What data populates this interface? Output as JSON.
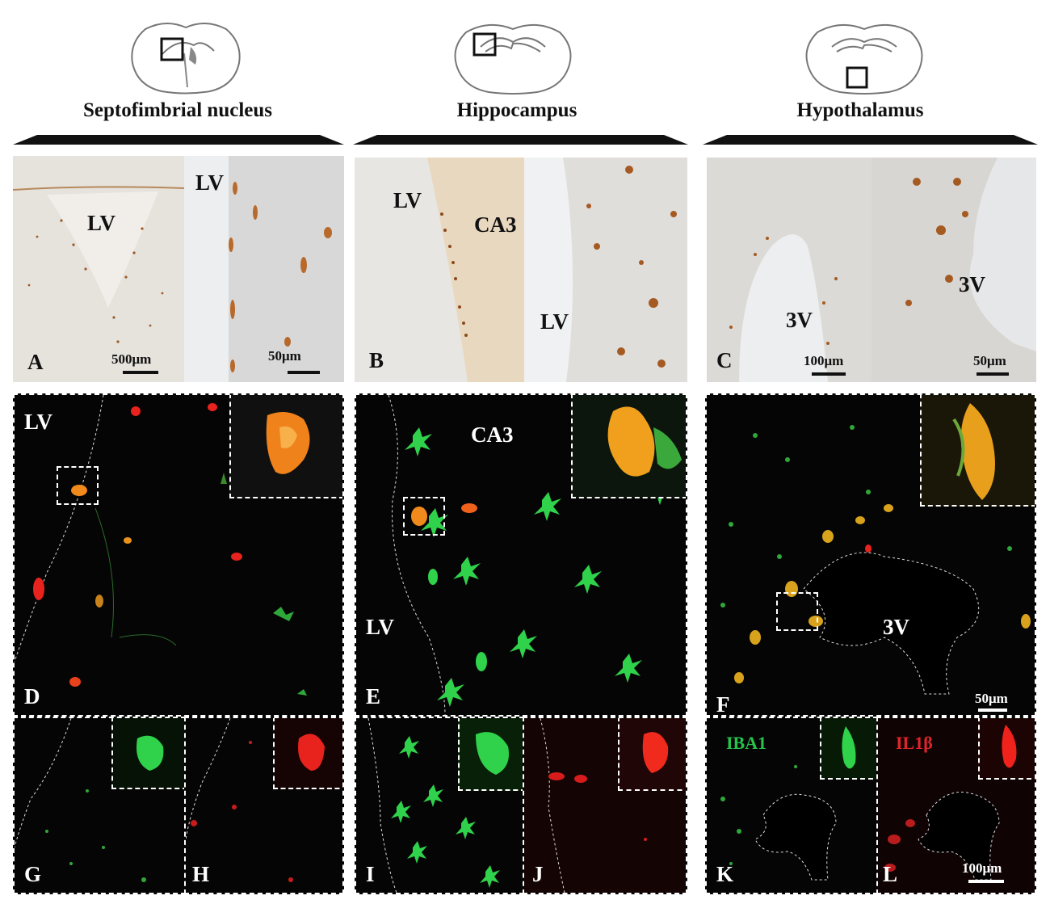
{
  "regions": {
    "septo": {
      "title": "Septofimbrial nucleus"
    },
    "hippo": {
      "title": "Hippocampus"
    },
    "hypo": {
      "title": "Hypothalamus"
    }
  },
  "panel_labels": {
    "A": "A",
    "B": "B",
    "C": "C",
    "D": "D",
    "E": "E",
    "F": "F",
    "G": "G",
    "H": "H",
    "I": "I",
    "J": "J",
    "K": "K",
    "L": "L"
  },
  "region_labels": {
    "lv": "LV",
    "ca3": "CA3",
    "v3": "3V"
  },
  "scale_bars": {
    "a_left": "500μm",
    "a_right": "50μm",
    "c_left": "100μm",
    "c_right": "50μm",
    "f": "50μm",
    "l": "100μm"
  },
  "markers": {
    "iba1": "IBA1",
    "il1b": "IL1β"
  },
  "colors": {
    "brightfield_bg": "#dedad4",
    "fluor_bg": "#050505",
    "iba1_green": "#2fd24a",
    "il1b_red": "#e8221c",
    "merge_orange": "#f08a1c",
    "dab_brown": "#8a4a1c",
    "iba1_label": "#26c24a",
    "il1b_label": "#e0252a"
  },
  "icons": [
    "brain-section-icon",
    "region-box-icon",
    "title-wedge"
  ]
}
